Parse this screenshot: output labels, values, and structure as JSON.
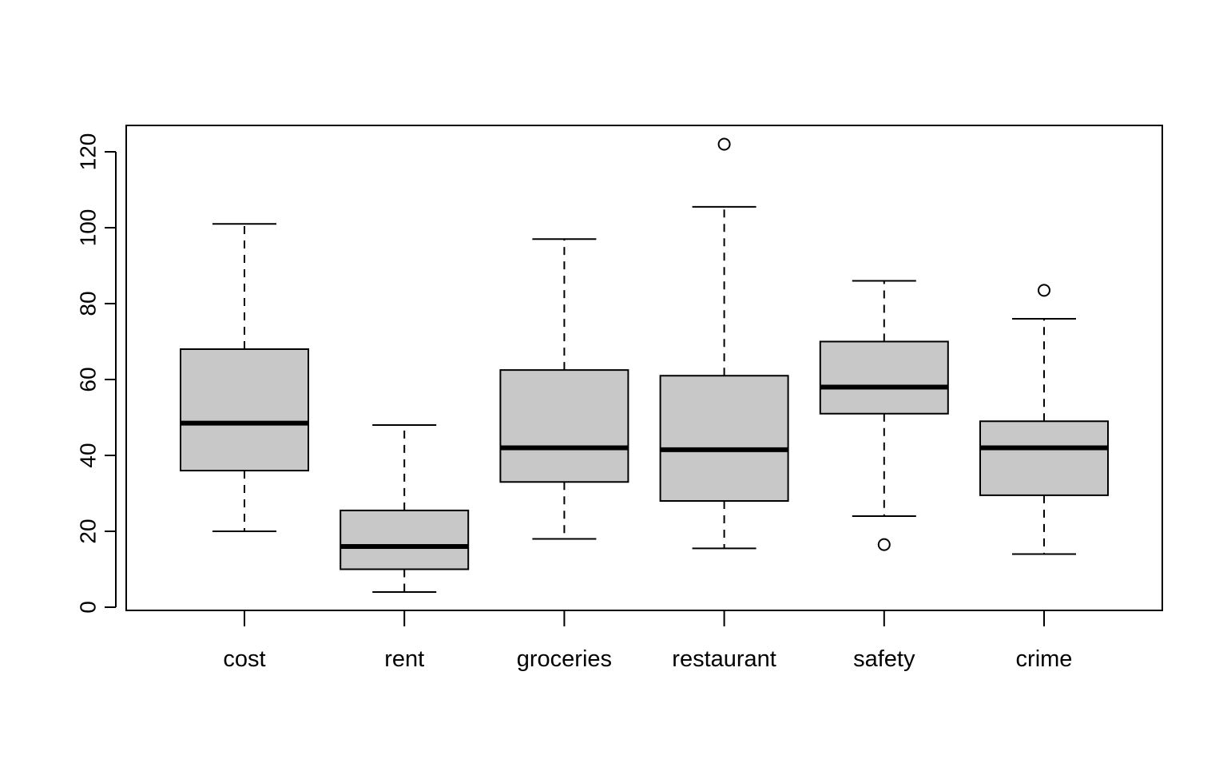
{
  "chart_data": {
    "type": "boxplot",
    "title": "",
    "xlabel": "",
    "ylabel": "",
    "ylim": [
      0,
      126
    ],
    "yticks": [
      0,
      20,
      40,
      60,
      80,
      100,
      120
    ],
    "ytick_labels": [
      "0",
      "20",
      "40",
      "60",
      "80",
      "100",
      "120"
    ],
    "categories": [
      "cost",
      "rent",
      "groceries",
      "restaurant",
      "safety",
      "crime"
    ],
    "box_fill": "#c8c8c8",
    "outlier_style": "open-circle",
    "grid": false,
    "boxes": [
      {
        "name": "cost",
        "whisker_low": 20,
        "q1": 36,
        "median": 48.5,
        "q3": 68,
        "whisker_high": 101,
        "outliers": []
      },
      {
        "name": "rent",
        "whisker_low": 4,
        "q1": 10,
        "median": 16,
        "q3": 25.5,
        "whisker_high": 48,
        "outliers": []
      },
      {
        "name": "groceries",
        "whisker_low": 18,
        "q1": 33,
        "median": 42,
        "q3": 62.5,
        "whisker_high": 97,
        "outliers": []
      },
      {
        "name": "restaurant",
        "whisker_low": 15.5,
        "q1": 28,
        "median": 41.5,
        "q3": 61,
        "whisker_high": 105.5,
        "outliers": [
          122
        ]
      },
      {
        "name": "safety",
        "whisker_low": 24,
        "q1": 51,
        "median": 58,
        "q3": 70,
        "whisker_high": 86,
        "outliers": [
          16.5
        ]
      },
      {
        "name": "crime",
        "whisker_low": 14,
        "q1": 29.5,
        "median": 42,
        "q3": 49,
        "whisker_high": 76,
        "outliers": [
          83.5
        ]
      }
    ]
  }
}
